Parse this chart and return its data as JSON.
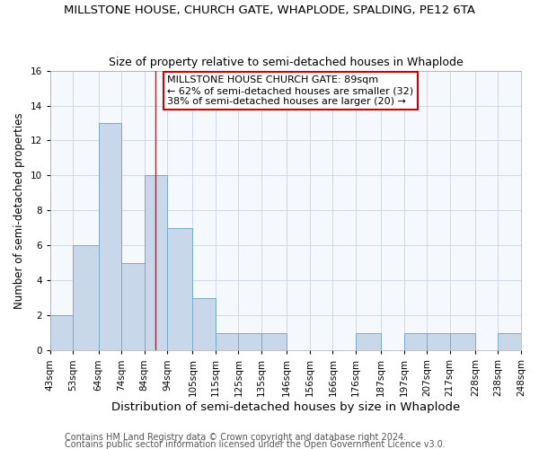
{
  "title": "MILLSTONE HOUSE, CHURCH GATE, WHAPLODE, SPALDING, PE12 6TA",
  "subtitle": "Size of property relative to semi-detached houses in Whaplode",
  "xlabel": "Distribution of semi-detached houses by size in Whaplode",
  "ylabel": "Number of semi-detached properties",
  "bin_edges": [
    43,
    53,
    64,
    74,
    84,
    94,
    105,
    115,
    125,
    135,
    146,
    156,
    166,
    176,
    187,
    197,
    207,
    217,
    228,
    238,
    248
  ],
  "bar_heights": [
    2,
    6,
    13,
    5,
    10,
    7,
    3,
    1,
    1,
    1,
    0,
    0,
    0,
    1,
    0,
    1,
    1,
    1,
    0,
    1
  ],
  "bar_color": "#c8d8ea",
  "bar_edge_color": "#7aaac8",
  "red_line_x": 89,
  "ylim": [
    0,
    16
  ],
  "yticks": [
    0,
    2,
    4,
    6,
    8,
    10,
    12,
    14,
    16
  ],
  "annotation_text": "MILLSTONE HOUSE CHURCH GATE: 89sqm\n← 62% of semi-detached houses are smaller (32)\n38% of semi-detached houses are larger (20) →",
  "annotation_box_color": "#ffffff",
  "annotation_box_edge_color": "#cc0000",
  "footer_line1": "Contains HM Land Registry data © Crown copyright and database right 2024.",
  "footer_line2": "Contains public sector information licensed under the Open Government Licence v3.0.",
  "title_fontsize": 9.5,
  "subtitle_fontsize": 9,
  "xlabel_fontsize": 9.5,
  "ylabel_fontsize": 8.5,
  "tick_fontsize": 7.5,
  "annotation_fontsize": 8,
  "footer_fontsize": 7,
  "grid_color": "#d0d8e8",
  "background_color": "#ffffff",
  "ax_background_color": "#f5f8fc"
}
